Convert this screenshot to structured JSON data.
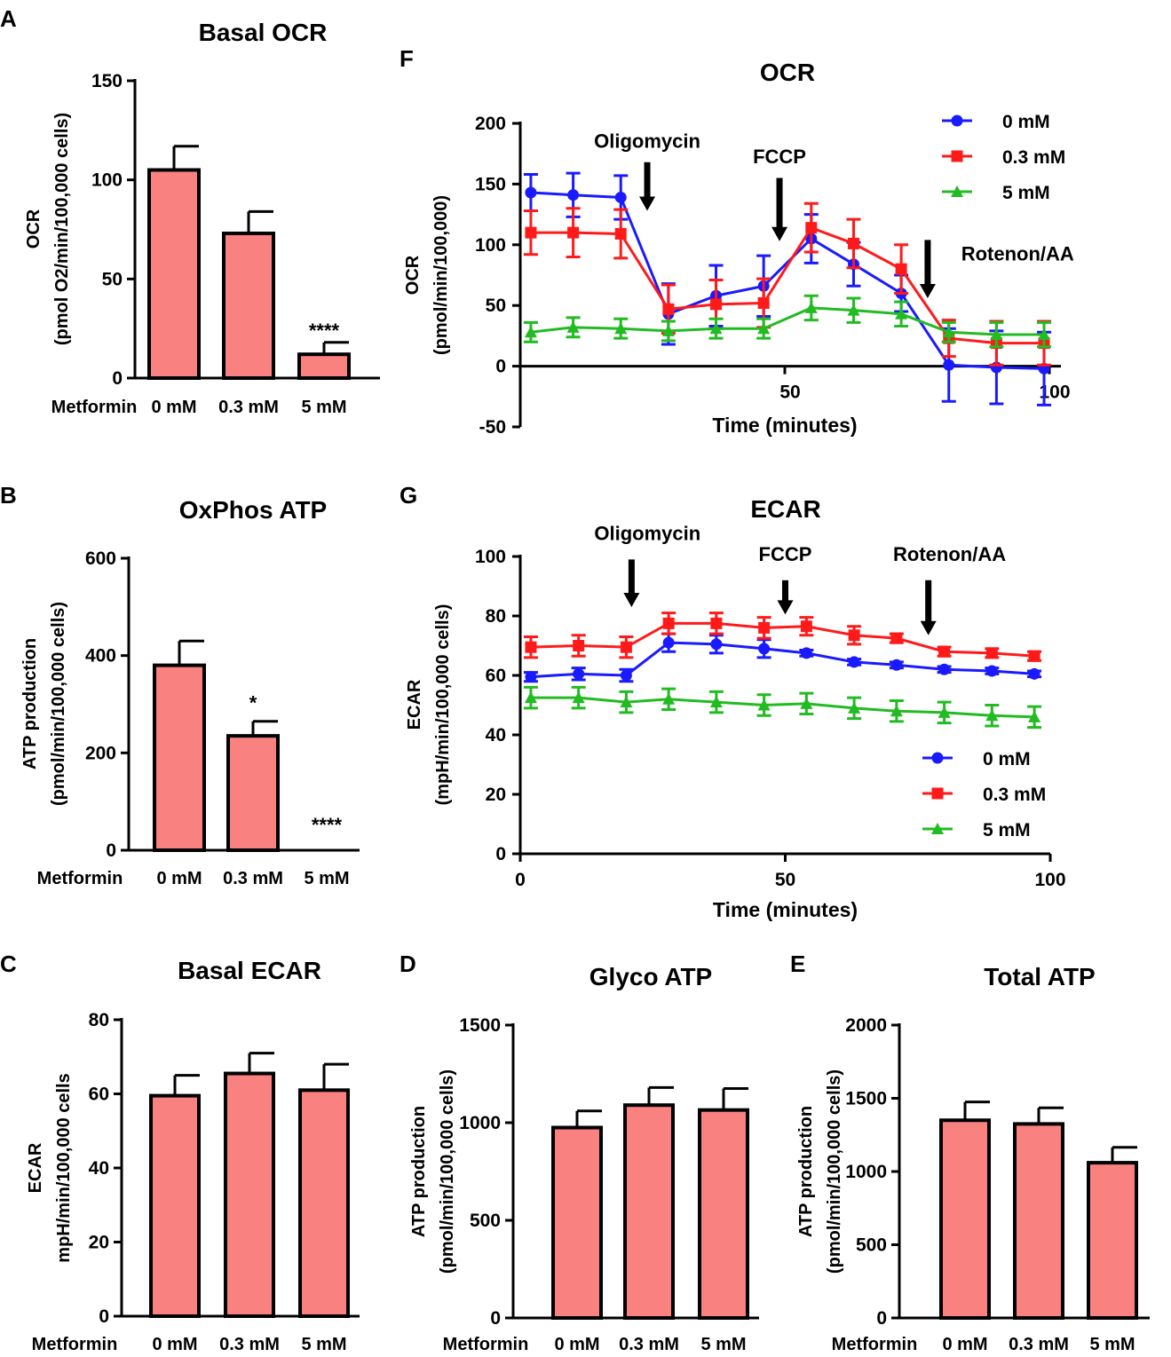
{
  "figure": {
    "panel_labels": [
      "A",
      "B",
      "C",
      "D",
      "E",
      "F",
      "G"
    ],
    "bar_color": "#f98280",
    "series_colors": {
      "0 mM": "#1a1aff",
      "0.3 mM": "#ff1a1a",
      "5 mM": "#22bb22"
    }
  },
  "chart_data": [
    {
      "id": "A",
      "type": "bar",
      "title": "Basal OCR",
      "ylabel_lines": [
        "OCR",
        "(pmol O2/min/100,000 cells)"
      ],
      "xprefix": "Metformin",
      "categories": [
        "0 mM",
        "0.3 mM",
        "5 mM"
      ],
      "values": [
        105,
        73,
        12
      ],
      "errors": [
        12,
        11,
        6
      ],
      "ylim": [
        0,
        150
      ],
      "yticks": [
        0,
        50,
        100,
        150
      ],
      "significance": [
        "",
        "",
        "****"
      ]
    },
    {
      "id": "B",
      "type": "bar",
      "title": "OxPhos ATP",
      "ylabel_lines": [
        "ATP production",
        "(pmol/min/100,000 cells)"
      ],
      "xprefix": "Metformin",
      "categories": [
        "0 mM",
        "0.3 mM",
        "5 mM"
      ],
      "values": [
        380,
        235,
        0
      ],
      "errors": [
        50,
        30,
        0
      ],
      "ylim": [
        0,
        600
      ],
      "yticks": [
        0,
        200,
        400,
        600
      ],
      "significance": [
        "",
        "*",
        "****"
      ]
    },
    {
      "id": "C",
      "type": "bar",
      "title": "Basal ECAR",
      "ylabel_lines": [
        "ECAR",
        "mpH/min/100,000 cells"
      ],
      "xprefix": "Metformin",
      "categories": [
        "0 mM",
        "0.3 mM",
        "5 mM"
      ],
      "values": [
        59.5,
        65.5,
        61
      ],
      "errors": [
        5.5,
        5.5,
        7
      ],
      "ylim": [
        0,
        80
      ],
      "yticks": [
        0,
        20,
        40,
        60,
        80
      ],
      "significance": [
        "",
        "",
        ""
      ]
    },
    {
      "id": "D",
      "type": "bar",
      "title": "Glyco ATP",
      "ylabel_lines": [
        "ATP production",
        "(pmol/min/100,000 cells)"
      ],
      "xprefix": "Metformin",
      "categories": [
        "0 mM",
        "0.3 mM",
        "5 mM"
      ],
      "values": [
        975,
        1090,
        1065
      ],
      "errors": [
        85,
        90,
        110
      ],
      "ylim": [
        0,
        1500
      ],
      "yticks": [
        0,
        500,
        1000,
        1500
      ],
      "significance": [
        "",
        "",
        ""
      ]
    },
    {
      "id": "E",
      "type": "bar",
      "title": "Total ATP",
      "ylabel_lines": [
        "ATP production",
        "(pmol/min/100,000 cells)"
      ],
      "xprefix": "Metformin",
      "categories": [
        "0 mM",
        "0.3 mM",
        "5 mM"
      ],
      "values": [
        1350,
        1325,
        1060
      ],
      "errors": [
        125,
        110,
        105
      ],
      "ylim": [
        0,
        2000
      ],
      "yticks": [
        0,
        500,
        1000,
        1500,
        2000
      ],
      "significance": [
        "",
        "",
        ""
      ]
    },
    {
      "id": "F",
      "type": "line",
      "title": "OCR",
      "xlabel": "Time (minutes)",
      "ylabel_lines": [
        "OCR",
        "(pmol/min/100,000)"
      ],
      "xlim": [
        0,
        100
      ],
      "ylim": [
        -50,
        200
      ],
      "xticks": [
        50,
        100
      ],
      "yticks": [
        -50,
        0,
        50,
        100,
        150,
        200
      ],
      "x": [
        2,
        10,
        19,
        28,
        37,
        46,
        55,
        63,
        72,
        81,
        90,
        99
      ],
      "series": [
        {
          "name": "0 mM",
          "values": [
            143,
            141,
            139,
            43,
            58,
            66,
            105,
            84,
            60,
            1,
            -1,
            -2
          ],
          "errors": [
            15,
            18,
            18,
            25,
            25,
            25,
            20,
            18,
            15,
            30,
            30,
            30
          ]
        },
        {
          "name": "0.3 mM",
          "values": [
            110,
            110,
            109,
            47,
            51,
            52,
            114,
            101,
            80,
            23,
            19,
            19
          ],
          "errors": [
            18,
            20,
            20,
            20,
            20,
            20,
            20,
            20,
            20,
            15,
            18,
            18
          ]
        },
        {
          "name": "5 mM",
          "values": [
            28,
            32,
            31,
            29,
            31,
            31,
            48,
            46,
            43,
            28,
            26,
            26
          ],
          "errors": [
            8,
            8,
            8,
            8,
            8,
            8,
            10,
            10,
            10,
            8,
            10,
            10
          ]
        }
      ],
      "annotations": [
        {
          "text": "Oligomycin",
          "arrow_x": 24,
          "text_x": 24,
          "arrow_y1": 168,
          "arrow_y2": 128,
          "text_y": 180
        },
        {
          "text": "FCCP",
          "arrow_x": 49,
          "text_x": 49,
          "arrow_y1": 155,
          "arrow_y2": 103,
          "text_y": 167
        },
        {
          "text": "Rotenon/AA",
          "arrow_x": 77,
          "text_x": 94,
          "arrow_y1": 104,
          "arrow_y2": 56,
          "text_y": 87
        }
      ],
      "legend": "top-right"
    },
    {
      "id": "G",
      "type": "line",
      "title": "ECAR",
      "xlabel": "Time (minutes)",
      "ylabel_lines": [
        "ECAR",
        "(mpH/min/100,000 cells)"
      ],
      "xlim": [
        0,
        100
      ],
      "ylim": [
        0,
        100
      ],
      "xticks": [
        0,
        50,
        100
      ],
      "yticks": [
        0,
        20,
        40,
        60,
        80,
        100
      ],
      "x": [
        2,
        11,
        20,
        28,
        37,
        46,
        54,
        63,
        71,
        80,
        89,
        97
      ],
      "series": [
        {
          "name": "0 mM",
          "values": [
            59.5,
            60.5,
            60,
            71,
            70.5,
            69,
            67.5,
            64.5,
            63.5,
            62,
            61.5,
            60.5
          ],
          "errors": [
            1.5,
            2,
            2,
            3,
            3,
            3,
            1,
            1,
            1,
            1,
            1,
            1
          ]
        },
        {
          "name": "0.3 mM",
          "values": [
            69.5,
            70,
            69.5,
            77.5,
            77.5,
            76,
            76.5,
            73.5,
            72.5,
            68,
            67.5,
            66.5
          ],
          "errors": [
            3.5,
            3.5,
            3.5,
            3.5,
            3.5,
            3.5,
            3,
            3,
            1.5,
            1.5,
            1.5,
            1.5
          ]
        },
        {
          "name": "5 mM",
          "values": [
            52.5,
            52.5,
            51,
            52,
            51,
            50,
            50.5,
            49,
            48,
            47.5,
            46.5,
            46
          ],
          "errors": [
            3.5,
            3.5,
            3.5,
            3.5,
            3.5,
            3.5,
            3.5,
            3.5,
            3.5,
            3.5,
            3.5,
            3.5
          ]
        }
      ],
      "annotations": [
        {
          "text": "Oligomycin",
          "arrow_x": 21,
          "text_x": 24,
          "arrow_y1": 99,
          "arrow_y2": 83,
          "text_y": 105.5
        },
        {
          "text": "FCCP",
          "arrow_x": 50,
          "text_x": 50,
          "arrow_y1": 92,
          "arrow_y2": 80.5,
          "text_y": 98.5
        },
        {
          "text": "Rotenon/AA",
          "arrow_x": 77,
          "text_x": 81,
          "arrow_y1": 92,
          "arrow_y2": 73.5,
          "text_y": 98.5
        }
      ],
      "legend": "bottom-right"
    }
  ]
}
